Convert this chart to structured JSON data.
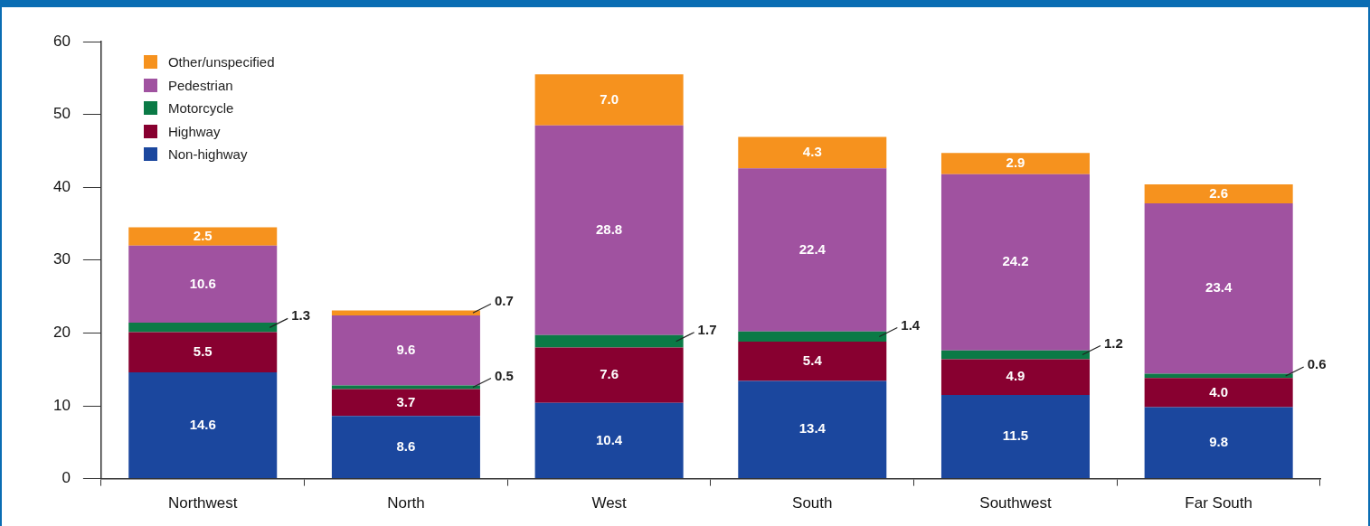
{
  "chart_data": {
    "type": "bar",
    "stacked": true,
    "categories": [
      "Northwest",
      "North",
      "West",
      "South",
      "Southwest",
      "Far South"
    ],
    "series": [
      {
        "name": "Non-highway",
        "color": "#1b479e",
        "values": [
          14.6,
          8.6,
          10.4,
          13.4,
          11.5,
          9.8
        ],
        "value_labels": [
          "14.6",
          "8.6",
          "10.4",
          "13.4",
          "11.5",
          "9.8"
        ]
      },
      {
        "name": "Highway",
        "color": "#880030",
        "values": [
          5.5,
          3.7,
          7.6,
          5.4,
          4.9,
          4.0
        ],
        "value_labels": [
          "5.5",
          "3.7",
          "7.6",
          "5.4",
          "4.9",
          "4.0"
        ]
      },
      {
        "name": "Motorcycle",
        "color": "#0b7a46",
        "values": [
          1.3,
          0.5,
          1.7,
          1.4,
          1.2,
          0.6
        ],
        "value_labels": [
          "1.3",
          "0.5",
          "1.7",
          "1.4",
          "1.2",
          "0.6"
        ]
      },
      {
        "name": "Pedestrian",
        "color": "#a052a0",
        "values": [
          10.6,
          9.6,
          28.8,
          22.4,
          24.2,
          23.4
        ],
        "value_labels": [
          "10.6",
          "9.6",
          "28.8",
          "22.4",
          "24.2",
          "23.4"
        ]
      },
      {
        "name": "Other/unspecified",
        "color": "#f6921e",
        "values": [
          2.5,
          0.7,
          7.0,
          4.3,
          2.9,
          2.6
        ],
        "value_labels": [
          "2.5",
          "0.7",
          "7.0",
          "4.3",
          "2.9",
          "2.6"
        ]
      }
    ],
    "ylim": [
      0,
      60
    ],
    "yticks": [
      0,
      10,
      20,
      30,
      40,
      50,
      60
    ],
    "grid": false,
    "legend": "top left"
  }
}
